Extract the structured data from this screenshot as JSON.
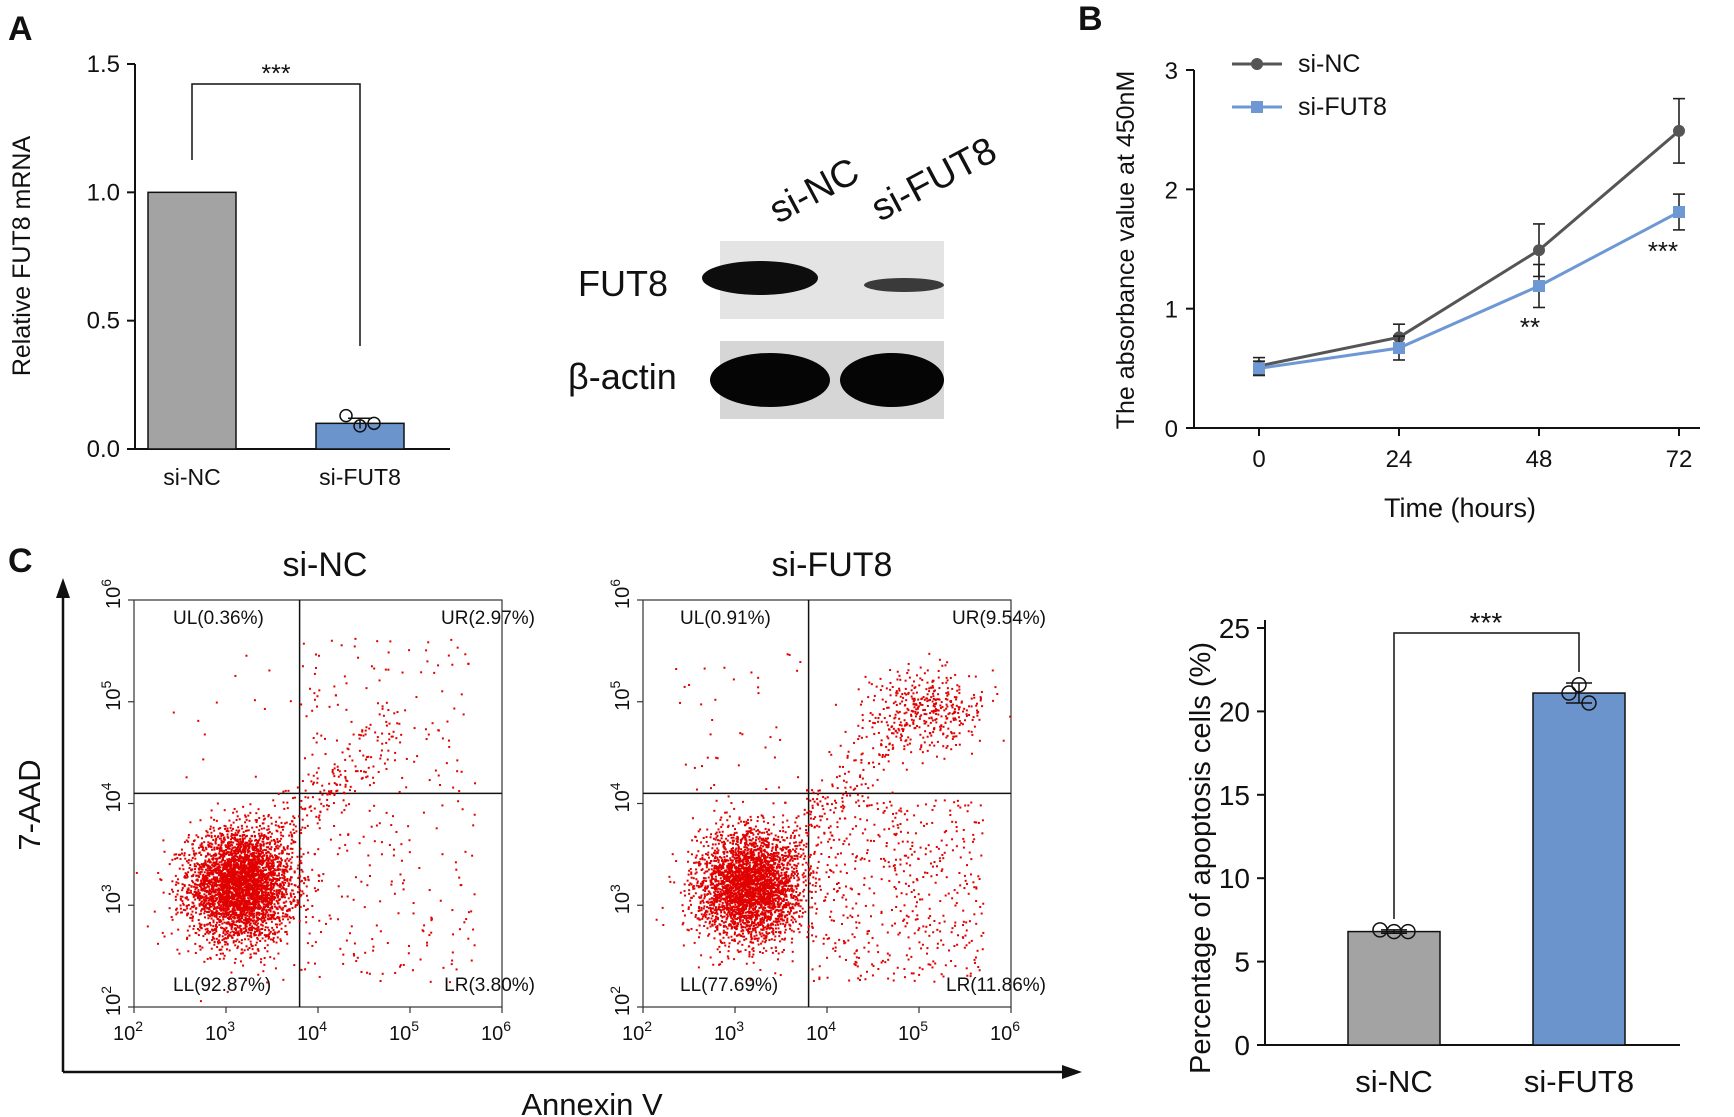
{
  "panels": {
    "a": "A",
    "b": "B",
    "c": "C"
  },
  "colors": {
    "si_nc_bar": "#a3a3a3",
    "si_fut8_bar": "#6b93cc",
    "si_nc_line": "#555555",
    "si_fut8_line": "#6e98d4",
    "dots": "#e00000"
  },
  "chart_data": [
    {
      "id": "A-bar",
      "type": "bar",
      "categories": [
        "si-NC",
        "si-FUT8"
      ],
      "values": [
        1.0,
        0.1
      ],
      "replicates": [
        [
          1.0,
          1.0,
          1.0
        ],
        [
          0.13,
          0.09,
          0.1
        ]
      ],
      "errors": [
        0,
        0.02
      ],
      "ylabel": "Relative FUT8 mRNA",
      "yticks": [
        "0.0",
        "0.5",
        "1.0",
        "1.5"
      ],
      "ylim": [
        0,
        1.5
      ],
      "significance": "***",
      "colors": [
        "#a3a3a3",
        "#6b93cc"
      ]
    },
    {
      "id": "A-blot",
      "type": "table",
      "columns": [
        "si-NC",
        "si-FUT8"
      ],
      "rows": [
        "FUT8",
        "β-actin"
      ]
    },
    {
      "id": "B-line",
      "type": "line",
      "x": [
        0,
        24,
        48,
        72
      ],
      "xticks": [
        "0",
        "24",
        "48",
        "72"
      ],
      "xlabel": "Time (hours)",
      "ylabel": "The absorbance value at 450nM",
      "yticks": [
        "0",
        "1",
        "2",
        "3"
      ],
      "ylim": [
        0,
        3
      ],
      "legend": "top-left",
      "series": [
        {
          "name": "si-NC",
          "values": [
            0.52,
            0.76,
            1.49,
            2.49
          ],
          "errors": [
            0.07,
            0.11,
            0.22,
            0.27
          ],
          "marker": "circle",
          "color": "#555555"
        },
        {
          "name": "si-FUT8",
          "values": [
            0.5,
            0.67,
            1.19,
            1.81
          ],
          "errors": [
            0.06,
            0.1,
            0.18,
            0.15
          ],
          "marker": "square",
          "color": "#6e98d4"
        }
      ],
      "annotations": [
        {
          "x": 48,
          "text": "**"
        },
        {
          "x": 72,
          "text": "***"
        }
      ]
    },
    {
      "id": "C-flow-si-NC",
      "type": "scatter",
      "title": "si-NC",
      "xlabel": "Annexin V",
      "ylabel": "7-AAD",
      "xticks": [
        {
          "base": "10",
          "exp": "2"
        },
        {
          "base": "10",
          "exp": "3"
        },
        {
          "base": "10",
          "exp": "4"
        },
        {
          "base": "10",
          "exp": "5"
        },
        {
          "base": "10",
          "exp": "6"
        }
      ],
      "yticks": [
        {
          "base": "10",
          "exp": "2"
        },
        {
          "base": "10",
          "exp": "3"
        },
        {
          "base": "10",
          "exp": "4"
        },
        {
          "base": "10",
          "exp": "5"
        },
        {
          "base": "10",
          "exp": "6"
        }
      ],
      "log_scale": true,
      "quadrant_gate": [
        3.8,
        4.1
      ],
      "quadrants": {
        "UL": "UL(0.36%)",
        "UR": "UR(2.97%)",
        "LL": "LL(92.87%)",
        "LR": "LR(3.80%)"
      },
      "quadrant_percent": {
        "UL": 0.36,
        "UR": 2.97,
        "LL": 92.87,
        "LR": 3.8
      }
    },
    {
      "id": "C-flow-si-FUT8",
      "type": "scatter",
      "title": "si-FUT8",
      "xticks": [
        {
          "base": "10",
          "exp": "2"
        },
        {
          "base": "10",
          "exp": "3"
        },
        {
          "base": "10",
          "exp": "4"
        },
        {
          "base": "10",
          "exp": "5"
        },
        {
          "base": "10",
          "exp": "6"
        }
      ],
      "yticks": [
        {
          "base": "10",
          "exp": "2"
        },
        {
          "base": "10",
          "exp": "3"
        },
        {
          "base": "10",
          "exp": "4"
        },
        {
          "base": "10",
          "exp": "5"
        },
        {
          "base": "10",
          "exp": "6"
        }
      ],
      "log_scale": true,
      "quadrant_gate": [
        3.8,
        4.1
      ],
      "quadrants": {
        "UL": "UL(0.91%)",
        "UR": "UR(9.54%)",
        "LL": "LL(77.69%)",
        "LR": "LR(11.86%)"
      },
      "quadrant_percent": {
        "UL": 0.91,
        "UR": 9.54,
        "LL": 77.69,
        "LR": 11.86
      }
    },
    {
      "id": "C-bar",
      "type": "bar",
      "categories": [
        "si-NC",
        "si-FUT8"
      ],
      "values": [
        6.8,
        21.1
      ],
      "replicates": [
        [
          6.9,
          6.8,
          6.8
        ],
        [
          21.6,
          21.1,
          20.5
        ]
      ],
      "errors": [
        0.1,
        0.6
      ],
      "ylabel": "Percentage of apoptosis cells (%)",
      "yticks": [
        "0",
        "5",
        "10",
        "15",
        "20",
        "25"
      ],
      "ylim": [
        0,
        25
      ],
      "significance": "***",
      "colors": [
        "#a3a3a3",
        "#6b93cc"
      ]
    }
  ]
}
